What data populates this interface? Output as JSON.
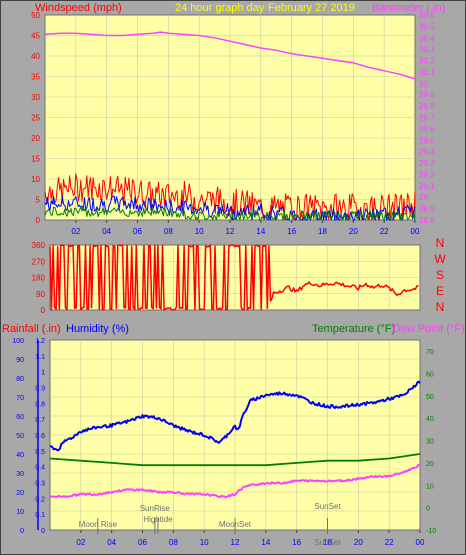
{
  "colors": {
    "background": "#a8a8a8",
    "plot_bg": "#ffffa8",
    "grid": "#c8c8a0",
    "red": "#ff0000",
    "blue": "#0000ff",
    "green": "#008000",
    "magenta": "#ff40ff",
    "yellow_text": "#ffff00",
    "dark_grid": "#707070"
  },
  "header": {
    "left_label": "Windspeed (mph)",
    "center_label": "24 hour graph day",
    "date_label": "February 27 2019",
    "right_label": "Barometer (.in)"
  },
  "direction_labels": [
    "N",
    "W",
    "S",
    "E",
    "N"
  ],
  "bottom_header": {
    "rainfall": "Rainfall (.in)",
    "humidity": "Humidity (%)",
    "temperature": "Temperature (°F)",
    "dewpoint": "Dew Point (°F)"
  },
  "events": [
    {
      "label": "Moon Rise",
      "hour": 3.1
    },
    {
      "label": "SunRise",
      "hour": 6.8
    },
    {
      "label": "Hightide",
      "hour": 7.0
    },
    {
      "label": "MoonSet",
      "hour": 12.0
    },
    {
      "label": "SunSet",
      "hour": 18.0
    },
    {
      "label": "SunSet",
      "hour": 18.0
    }
  ],
  "chart_data": [
    {
      "type": "line",
      "name": "windspeed-barometer",
      "x_ticks": [
        "02",
        "04",
        "06",
        "08",
        "10",
        "12",
        "14",
        "16",
        "18",
        "20",
        "22",
        "00"
      ],
      "xlim": [
        0,
        24
      ],
      "ylim_left": [
        0,
        50
      ],
      "yticks_left": [
        0,
        5,
        10,
        15,
        20,
        25,
        30,
        35,
        40,
        45,
        50
      ],
      "ylim_right": [
        28.8,
        30.6
      ],
      "yticks_right": [
        "28.8",
        "28.9",
        "29",
        "29.1",
        "29.2",
        "29.3",
        "29.4",
        "29.5",
        "29.6",
        "29.7",
        "29.8",
        "29.9",
        "30",
        "30.1",
        "30.2",
        "30.3",
        "30.4",
        "30.5",
        "30.6"
      ],
      "barometer": {
        "x": [
          0,
          1,
          2,
          3,
          4,
          5,
          6,
          7,
          7.5,
          8,
          9,
          10,
          11,
          12,
          13,
          14,
          15,
          16,
          17,
          18,
          19,
          20,
          21,
          22,
          23,
          24
        ],
        "y": [
          30.43,
          30.44,
          30.44,
          30.43,
          30.42,
          30.42,
          30.43,
          30.44,
          30.45,
          30.44,
          30.43,
          30.42,
          30.4,
          30.37,
          30.34,
          30.31,
          30.29,
          30.26,
          30.24,
          30.22,
          30.2,
          30.18,
          30.14,
          30.11,
          30.08,
          30.04
        ]
      },
      "wind_max_red": {
        "x": [
          0,
          1,
          2,
          3,
          4,
          5,
          6,
          7,
          8,
          9,
          10,
          11,
          12,
          13,
          14,
          15,
          16,
          17,
          18,
          19,
          20,
          21,
          22,
          23,
          24
        ],
        "y": [
          7,
          7,
          8,
          8,
          8,
          7,
          7,
          6,
          6,
          6,
          5,
          5,
          4,
          4,
          3,
          3,
          3,
          3,
          3,
          3,
          3,
          3,
          3,
          3,
          4
        ]
      },
      "wind_avg_blue": {
        "x": [
          0,
          2,
          4,
          6,
          8,
          10,
          12,
          14,
          16,
          18,
          20,
          22,
          24
        ],
        "y": [
          4,
          4,
          4,
          4,
          3,
          3,
          2,
          2,
          1,
          1,
          1,
          1,
          2
        ]
      },
      "wind_low_green": {
        "x": [
          0,
          2,
          4,
          6,
          8,
          10,
          12,
          14,
          16,
          18,
          20,
          22,
          24
        ],
        "y": [
          2,
          2,
          2,
          2,
          2,
          1,
          1,
          1,
          1,
          1,
          1,
          1,
          1
        ]
      }
    },
    {
      "type": "line",
      "name": "wind-direction",
      "xlim": [
        0,
        24
      ],
      "ylim": [
        0,
        360
      ],
      "yticks": [
        0,
        90,
        180,
        270,
        360
      ],
      "series": {
        "x": [
          0,
          0.5,
          1,
          1.5,
          2,
          2.5,
          3,
          3.5,
          4,
          4.5,
          5,
          5.5,
          6,
          6.5,
          7,
          7.5,
          8,
          8.5,
          9,
          9.5,
          10,
          10.5,
          11,
          11.5,
          12,
          12.5,
          13,
          13.5,
          14,
          14.2,
          14.5,
          15,
          15.5,
          16,
          16.5,
          17,
          17.5,
          18,
          18.5,
          19,
          19.5,
          20,
          20.5,
          21,
          21.5,
          22,
          22.5,
          23,
          23.5,
          24
        ],
        "y": [
          350,
          10,
          350,
          355,
          15,
          340,
          10,
          350,
          20,
          345,
          5,
          350,
          15,
          355,
          10,
          340,
          20,
          350,
          5,
          355,
          15,
          345,
          10,
          350,
          20,
          355,
          10,
          340,
          350,
          10,
          95,
          110,
          125,
          100,
          140,
          150,
          135,
          145,
          150,
          140,
          130,
          120,
          145,
          125,
          140,
          120,
          85,
          110,
          115,
          125
        ]
      }
    },
    {
      "type": "line",
      "name": "humidity-temperature-dewpoint",
      "xlim": [
        0,
        24
      ],
      "ylim_left_rain": [
        0,
        1.2
      ],
      "yticks_rain": [
        "0",
        "0.05",
        "0.1",
        "0.15",
        "0.2",
        "0.25",
        "0.3",
        "0.35",
        "0.4",
        "0.45",
        "0.5",
        "0.55",
        "0.6",
        "0.65",
        "0.7",
        "0.75",
        "0.8",
        "0.85",
        "0.9",
        "0.95",
        "1",
        "1.05",
        "1.1",
        "1.15",
        "1.2"
      ],
      "ylim_left_humidity": [
        0,
        100
      ],
      "yticks_humidity": [
        0,
        10,
        20,
        30,
        40,
        50,
        60,
        70,
        80,
        90,
        100
      ],
      "ylim_right_temp": [
        -10,
        75
      ],
      "yticks_temp": [
        -10,
        -5,
        0,
        5,
        10,
        15,
        20,
        25,
        30,
        35,
        40,
        45,
        50,
        55,
        60,
        65,
        70,
        75
      ],
      "x_ticks": [
        "02",
        "04",
        "06",
        "08",
        "10",
        "12",
        "14",
        "16",
        "18",
        "20",
        "22",
        "00"
      ],
      "humidity": {
        "x": [
          0,
          0.5,
          1,
          1.5,
          2,
          3,
          4,
          5,
          6,
          7,
          8,
          9,
          10,
          10.5,
          11,
          11.5,
          12,
          12.2,
          12.5,
          13,
          14,
          15,
          16,
          17,
          18,
          19,
          20,
          21,
          22,
          23,
          23.5,
          24
        ],
        "y": [
          44,
          42,
          47,
          49,
          52,
          54,
          55,
          57,
          60,
          59,
          55,
          52,
          50,
          48,
          46,
          50,
          55,
          52,
          60,
          68,
          71,
          72,
          71,
          67,
          65,
          65,
          66,
          67,
          69,
          71,
          75,
          78
        ]
      },
      "temperature": {
        "x": [
          0,
          2,
          4,
          6,
          8,
          10,
          12,
          14,
          16,
          18,
          20,
          22,
          24
        ],
        "y": [
          22,
          21,
          20,
          19,
          19,
          19,
          19,
          19,
          20,
          21,
          21,
          22,
          24
        ]
      },
      "dewpoint": {
        "x": [
          0,
          1,
          2,
          3,
          4,
          5,
          6,
          7,
          8,
          9,
          10,
          11,
          11.5,
          12,
          12.5,
          13,
          14,
          15,
          16,
          17,
          18,
          19,
          20,
          21,
          22,
          23,
          24
        ],
        "y": [
          5,
          5,
          6,
          6,
          7,
          8,
          8,
          7,
          7,
          6,
          6,
          5,
          5,
          6,
          9,
          10,
          11,
          11,
          12,
          12,
          12,
          12,
          13,
          14,
          14,
          16,
          19
        ]
      }
    }
  ]
}
